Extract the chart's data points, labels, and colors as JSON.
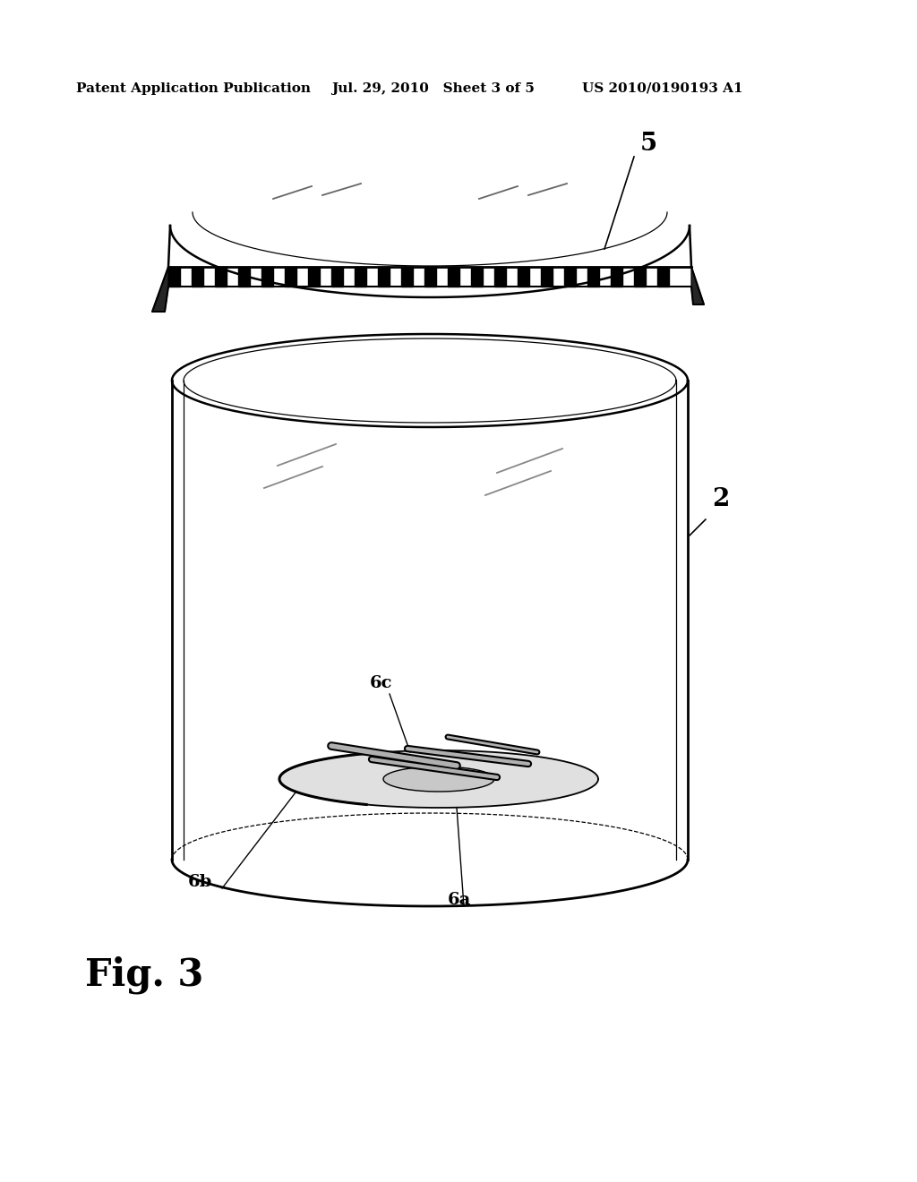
{
  "bg_color": "#ffffff",
  "header_left": "Patent Application Publication",
  "header_mid": "Jul. 29, 2010   Sheet 3 of 5",
  "header_right": "US 2010/0190193 A1",
  "fig_label": "Fig. 3",
  "label_5": "5",
  "label_2": "2",
  "label_6a": "6a",
  "label_6b": "6b",
  "label_6c": "6c"
}
